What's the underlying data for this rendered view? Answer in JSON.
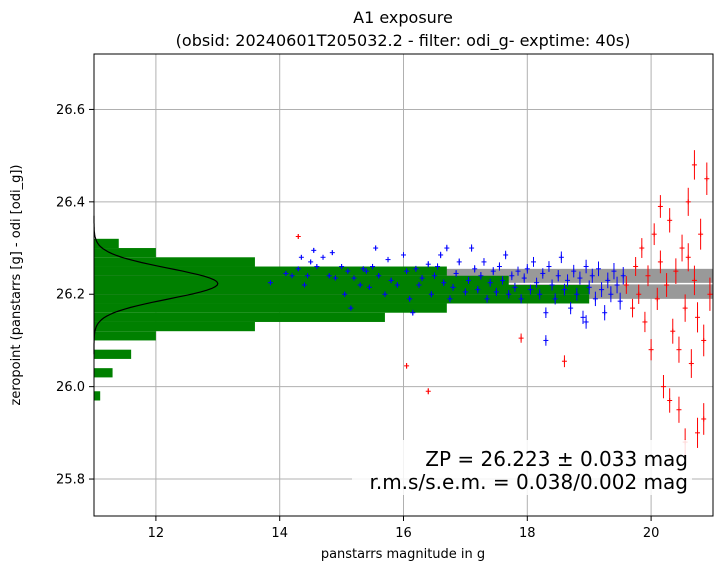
{
  "chart_data": {
    "type": "scatter",
    "title": "A1 exposure",
    "subtitle": "(obsid: 20240601T205032.2 - filter: odi_g- exptime: 40s)",
    "xlabel": "panstarrs magnitude in g",
    "ylabel": "zeropoint (panstarrs [g] - odi [odi_g])",
    "xlim": [
      11.0,
      21.0
    ],
    "ylim": [
      25.72,
      26.72
    ],
    "xticks": [
      "12",
      "14",
      "16",
      "18",
      "20"
    ],
    "yticks": [
      "25.8",
      "26.0",
      "26.2",
      "26.4",
      "26.6"
    ],
    "grid": true,
    "zeropoint": 26.223,
    "zp_band": [
      26.19,
      26.255
    ],
    "colors": {
      "used": "#0000ff",
      "rejected": "#ff0000",
      "histogram": "#008000",
      "band": "#999999",
      "gaussian": "#000000"
    },
    "stats_text": {
      "zp": "ZP = 26.223 ± 0.033 mag",
      "rms": "r.m.s/s.e.m. = 0.038/0.002 mag"
    },
    "histogram": {
      "orientation": "horizontal",
      "bins": [
        {
          "y": 25.98,
          "count": 0.1
        },
        {
          "y": 26.03,
          "count": 0.3
        },
        {
          "y": 26.07,
          "count": 0.6
        },
        {
          "y": 26.11,
          "count": 1.0
        },
        {
          "y": 26.13,
          "count": 2.6
        },
        {
          "y": 26.15,
          "count": 4.7
        },
        {
          "y": 26.17,
          "count": 5.7
        },
        {
          "y": 26.19,
          "count": 8.0
        },
        {
          "y": 26.21,
          "count": 8.0
        },
        {
          "y": 26.23,
          "count": 6.7
        },
        {
          "y": 26.25,
          "count": 5.7
        },
        {
          "y": 26.27,
          "count": 2.6
        },
        {
          "y": 26.29,
          "count": 1.0
        },
        {
          "y": 26.31,
          "count": 0.4
        }
      ]
    },
    "series": [
      {
        "name": "",
        "role": "used",
        "points": [
          [
            13.85,
            26.225
          ],
          [
            14.1,
            26.245
          ],
          [
            14.2,
            26.24
          ],
          [
            14.3,
            26.255
          ],
          [
            14.35,
            26.28
          ],
          [
            14.4,
            26.22
          ],
          [
            14.45,
            26.24
          ],
          [
            14.5,
            26.27
          ],
          [
            14.55,
            26.295
          ],
          [
            14.6,
            26.26
          ],
          [
            14.7,
            26.28
          ],
          [
            14.8,
            26.24
          ],
          [
            14.85,
            26.29
          ],
          [
            14.9,
            26.235
          ],
          [
            15.0,
            26.26
          ],
          [
            15.05,
            26.2
          ],
          [
            15.1,
            26.25
          ],
          [
            15.15,
            26.17
          ],
          [
            15.2,
            26.235
          ],
          [
            15.3,
            26.22
          ],
          [
            15.35,
            26.255
          ],
          [
            15.4,
            26.25
          ],
          [
            15.45,
            26.215
          ],
          [
            15.5,
            26.26
          ],
          [
            15.55,
            26.3
          ],
          [
            15.6,
            26.24
          ],
          [
            15.7,
            26.2
          ],
          [
            15.75,
            26.275
          ],
          [
            15.8,
            26.23
          ],
          [
            15.9,
            26.22
          ],
          [
            16.0,
            26.285
          ],
          [
            16.05,
            26.25
          ],
          [
            16.1,
            26.19
          ],
          [
            16.15,
            26.16
          ],
          [
            16.2,
            26.255
          ],
          [
            16.25,
            26.22
          ],
          [
            16.3,
            26.235
          ],
          [
            16.4,
            26.265
          ],
          [
            16.45,
            26.2
          ],
          [
            16.5,
            26.24
          ],
          [
            16.55,
            26.26
          ],
          [
            16.6,
            26.285
          ],
          [
            16.65,
            26.225
          ],
          [
            16.7,
            26.3
          ],
          [
            16.75,
            26.19
          ],
          [
            16.8,
            26.215
          ],
          [
            16.85,
            26.245
          ],
          [
            16.9,
            26.27
          ],
          [
            17.0,
            26.205
          ],
          [
            17.05,
            26.23
          ],
          [
            17.1,
            26.3
          ],
          [
            17.15,
            26.255
          ],
          [
            17.2,
            26.21
          ],
          [
            17.25,
            26.24
          ],
          [
            17.3,
            26.27
          ],
          [
            17.35,
            26.19
          ],
          [
            17.4,
            26.225
          ],
          [
            17.45,
            26.25
          ],
          [
            17.5,
            26.205
          ],
          [
            17.55,
            26.26
          ],
          [
            17.6,
            26.23
          ],
          [
            17.65,
            26.285
          ],
          [
            17.7,
            26.2
          ],
          [
            17.75,
            26.24
          ],
          [
            17.8,
            26.215
          ],
          [
            17.85,
            26.25
          ],
          [
            17.9,
            26.19
          ],
          [
            17.95,
            26.235
          ],
          [
            18.0,
            26.255
          ],
          [
            18.05,
            26.21
          ],
          [
            18.1,
            26.27
          ],
          [
            18.15,
            26.225
          ],
          [
            18.2,
            26.2
          ],
          [
            18.25,
            26.245
          ],
          [
            18.3,
            26.16
          ],
          [
            18.35,
            26.26
          ],
          [
            18.4,
            26.22
          ],
          [
            18.45,
            26.19
          ],
          [
            18.5,
            26.24
          ],
          [
            18.55,
            26.28
          ],
          [
            18.6,
            26.21
          ],
          [
            18.65,
            26.23
          ],
          [
            18.7,
            26.17
          ],
          [
            18.75,
            26.25
          ],
          [
            18.8,
            26.2
          ],
          [
            18.85,
            26.235
          ],
          [
            18.9,
            26.15
          ],
          [
            18.95,
            26.26
          ],
          [
            19.0,
            26.215
          ],
          [
            19.05,
            26.24
          ],
          [
            19.1,
            26.19
          ],
          [
            19.15,
            26.255
          ],
          [
            19.2,
            26.21
          ],
          [
            19.25,
            26.16
          ],
          [
            19.3,
            26.23
          ],
          [
            19.35,
            26.2
          ],
          [
            19.4,
            26.25
          ],
          [
            19.45,
            26.22
          ],
          [
            19.5,
            26.185
          ],
          [
            19.55,
            26.24
          ],
          [
            18.3,
            26.1
          ],
          [
            18.95,
            26.14
          ]
        ]
      },
      {
        "name": "",
        "role": "rejected",
        "points": [
          [
            14.3,
            26.325
          ],
          [
            16.05,
            26.045
          ],
          [
            16.4,
            25.99
          ],
          [
            17.9,
            26.105
          ],
          [
            18.6,
            26.055
          ],
          [
            19.6,
            26.22
          ],
          [
            19.7,
            26.17
          ],
          [
            19.75,
            26.26
          ],
          [
            19.8,
            26.2
          ],
          [
            19.85,
            26.3
          ],
          [
            19.9,
            26.14
          ],
          [
            19.95,
            26.24
          ],
          [
            20.0,
            26.08
          ],
          [
            20.05,
            26.33
          ],
          [
            20.1,
            26.19
          ],
          [
            20.15,
            26.27
          ],
          [
            20.2,
            26.0
          ],
          [
            20.25,
            26.22
          ],
          [
            20.3,
            26.36
          ],
          [
            20.35,
            26.12
          ],
          [
            20.4,
            26.25
          ],
          [
            20.45,
            25.95
          ],
          [
            20.5,
            26.3
          ],
          [
            20.55,
            26.17
          ],
          [
            20.6,
            26.4
          ],
          [
            20.65,
            26.05
          ],
          [
            20.7,
            26.23
          ],
          [
            20.75,
            25.9
          ],
          [
            20.8,
            26.33
          ],
          [
            20.85,
            26.1
          ],
          [
            20.9,
            26.45
          ],
          [
            20.95,
            26.2
          ],
          [
            20.3,
            25.97
          ],
          [
            20.55,
            25.88
          ],
          [
            20.7,
            26.48
          ],
          [
            20.85,
            25.93
          ],
          [
            20.15,
            26.39
          ],
          [
            20.45,
            26.08
          ],
          [
            20.75,
            26.15
          ],
          [
            20.6,
            26.28
          ]
        ]
      }
    ]
  }
}
